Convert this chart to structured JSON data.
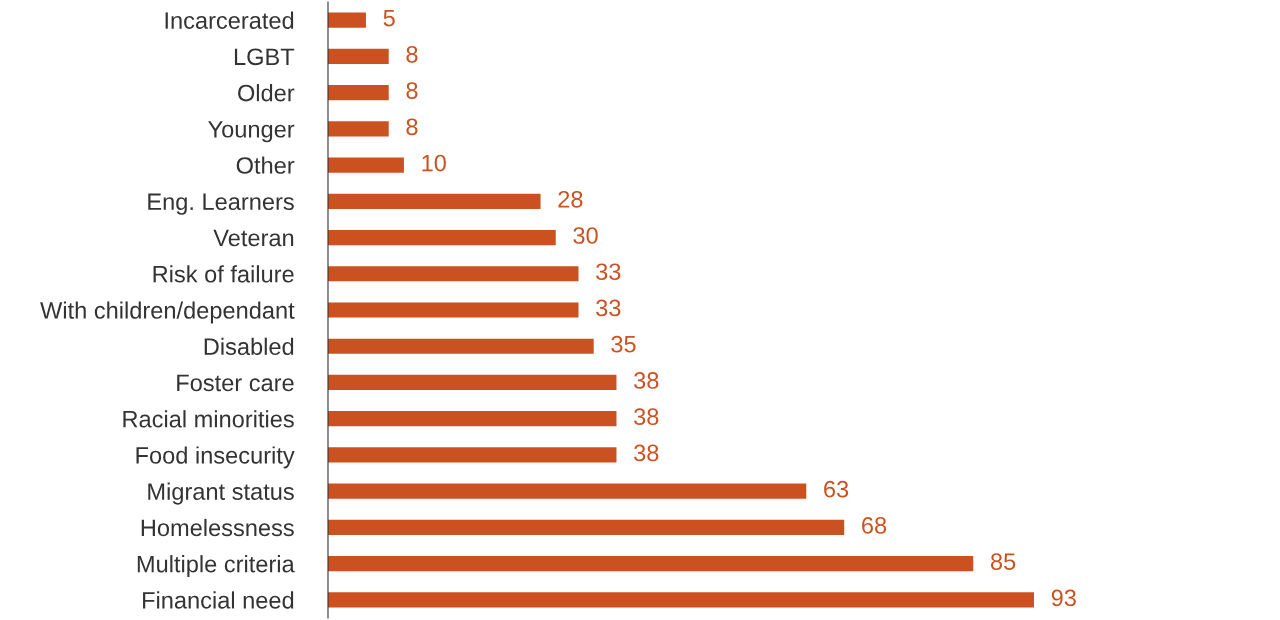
{
  "chart_data": {
    "type": "bar",
    "orientation": "horizontal",
    "categories": [
      "Incarcerated",
      "LGBT",
      "Older",
      "Younger",
      "Other",
      "Eng. Learners",
      "Veteran",
      "Risk of failure",
      "With children/dependant",
      "Disabled",
      "Foster care",
      "Racial minorities",
      "Food insecurity",
      "Migrant status",
      "Homelessness",
      "Multiple criteria",
      "Financial need"
    ],
    "values": [
      5,
      8,
      8,
      8,
      10,
      28,
      30,
      33,
      33,
      35,
      38,
      38,
      38,
      63,
      68,
      85,
      93
    ],
    "color": "#cc5120",
    "data_labels": true,
    "grid": false,
    "legend": false
  }
}
